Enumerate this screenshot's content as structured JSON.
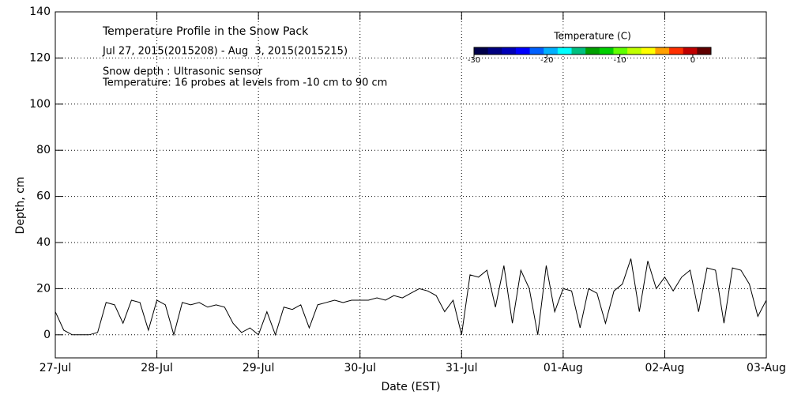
{
  "chart_data": {
    "type": "line",
    "title": "Temperature Profile in the Snow Pack",
    "subtitle": "Jul 27, 2015(2015208) - Aug  3, 2015(2015215)",
    "annotations": [
      "Snow depth : Ultrasonic sensor",
      "Temperature: 16 probes at levels from -10 cm to 90 cm"
    ],
    "x_label": "Date (EST)",
    "y_label": "Depth, cm",
    "xlim": [
      0,
      168
    ],
    "xticks": [
      {
        "value": 0,
        "label": "27-Jul"
      },
      {
        "value": 24,
        "label": "28-Jul"
      },
      {
        "value": 48,
        "label": "29-Jul"
      },
      {
        "value": 72,
        "label": "30-Jul"
      },
      {
        "value": 96,
        "label": "31-Jul"
      },
      {
        "value": 120,
        "label": "01-Aug"
      },
      {
        "value": 144,
        "label": "02-Aug"
      },
      {
        "value": 168,
        "label": "03-Aug"
      }
    ],
    "ylim": [
      -10,
      140
    ],
    "yticks": [
      0,
      20,
      40,
      60,
      80,
      100,
      120,
      140
    ],
    "grid": true,
    "x": [
      0,
      2,
      4,
      6,
      8,
      10,
      12,
      14,
      16,
      18,
      20,
      22,
      24,
      26,
      28,
      30,
      32,
      34,
      36,
      38,
      40,
      42,
      44,
      46,
      48,
      50,
      52,
      54,
      56,
      58,
      60,
      62,
      64,
      66,
      68,
      70,
      72,
      74,
      76,
      78,
      80,
      82,
      84,
      86,
      88,
      90,
      92,
      94,
      96,
      98,
      100,
      102,
      104,
      106,
      108,
      110,
      112,
      114,
      116,
      118,
      120,
      122,
      124,
      126,
      128,
      130,
      132,
      134,
      136,
      138,
      140,
      142,
      144,
      146,
      148,
      150,
      152,
      154,
      156,
      158,
      160,
      162,
      164,
      166,
      168
    ],
    "series": [
      {
        "name": "Snow depth",
        "color": "#000000",
        "values": [
          10,
          2,
          0,
          0,
          0,
          1,
          14,
          13,
          5,
          15,
          14,
          2,
          15,
          13,
          0,
          14,
          13,
          14,
          12,
          13,
          12,
          5,
          1,
          3,
          0,
          10,
          0,
          12,
          11,
          13,
          3,
          13,
          14,
          15,
          14,
          15,
          15,
          15,
          16,
          15,
          17,
          16,
          18,
          20,
          19,
          17,
          10,
          15,
          0,
          26,
          25,
          28,
          12,
          30,
          5,
          28,
          20,
          0,
          30,
          10,
          20,
          19,
          3,
          20,
          18,
          5,
          19,
          22,
          33,
          10,
          32,
          20,
          25,
          19,
          25,
          28,
          10,
          29,
          28,
          5,
          29,
          28,
          22,
          8,
          15
        ]
      }
    ],
    "colorbar": {
      "title": "Temperature (C)",
      "lim": [
        -30,
        2.5
      ],
      "ticks": [
        -30,
        -20,
        -10,
        0
      ],
      "colors": [
        "#00004a",
        "#000080",
        "#0000b8",
        "#0000ff",
        "#0060ff",
        "#00b0ff",
        "#00ffff",
        "#00c080",
        "#00a000",
        "#00d000",
        "#60ff00",
        "#c0ff00",
        "#ffff00",
        "#ffa000",
        "#ff3000",
        "#c00000",
        "#600000"
      ]
    }
  }
}
